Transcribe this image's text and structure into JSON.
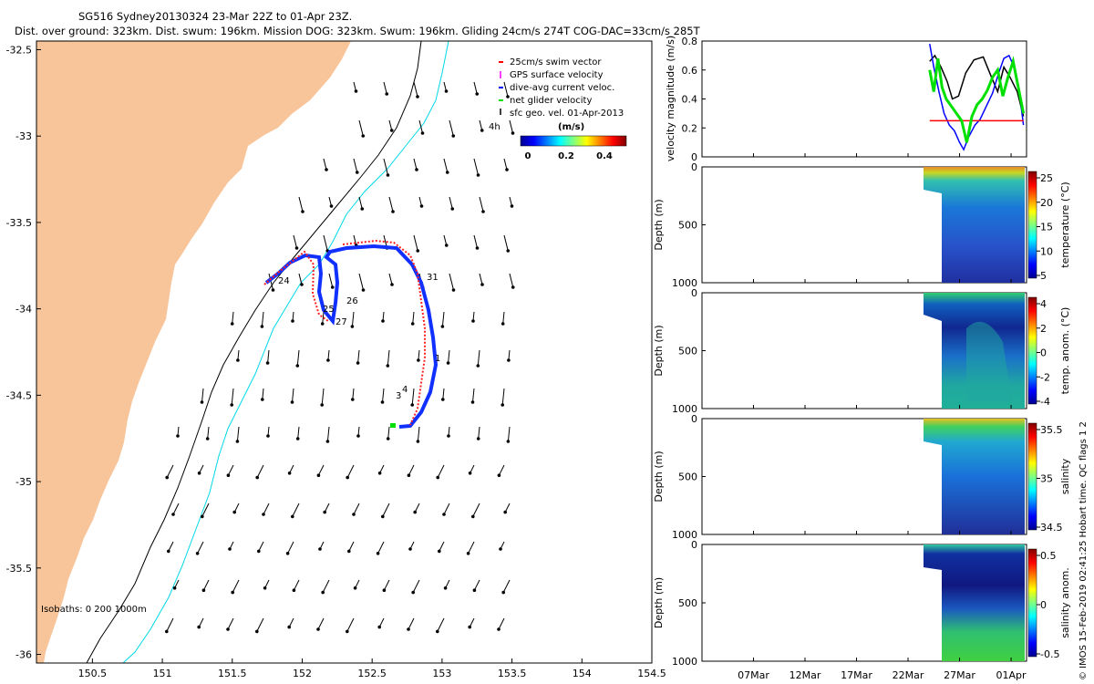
{
  "header": {
    "line1": "SG516 Sydney20130324 23-Mar 22Z to 01-Apr 23Z.",
    "line2": "Dist. over ground: 323km. Dist. swum: 196km. Mission DOG: 323km. Swum: 196km. Gliding 24cm/s 274T COG-DAC=33cm/s 285T"
  },
  "map": {
    "xlim": [
      150.1,
      154.5
    ],
    "ylim": [
      -36.05,
      -32.45
    ],
    "xticks": [
      "150.5",
      "151",
      "151.5",
      "152",
      "152.5",
      "153",
      "153.5",
      "154",
      "154.5"
    ],
    "yticks": [
      "-32.5",
      "-33",
      "-33.5",
      "-34",
      "-34.5",
      "-35",
      "-35.5",
      "-36"
    ],
    "land_color": "#f8c59a",
    "isobath_200_color": "#000000",
    "isobath_1000_color": "#00d8e8",
    "isobaths_label": "Isobaths: 0   200   1000m",
    "legend": [
      {
        "label": "25cm/s swim vector",
        "color": "#ff0000"
      },
      {
        "label": "GPS surface velocity",
        "color": "#ff00ff"
      },
      {
        "label": "dive-avg current veloc.",
        "color": "#0000ff"
      },
      {
        "label": "net glider velocity",
        "color": "#00e000"
      },
      {
        "label": "sfc geo. vel. 01-Apr-2013",
        "color": "#000000"
      }
    ],
    "scale_arrow_label": "4h",
    "colorbar_title": "(m/s)",
    "colorbar_ticks": [
      "0",
      "0.2",
      "0.4"
    ],
    "track_labels": [
      "24",
      "25",
      "26",
      "27",
      "31",
      "1",
      "3",
      "4"
    ]
  },
  "chart_data": [
    {
      "type": "line",
      "ylabel": "velocity magnitude (m/s)",
      "ylim": [
        0,
        0.8
      ],
      "yticks": [
        "0",
        "0.2",
        "0.4",
        "0.6",
        "0.8"
      ],
      "series": [
        {
          "color": "#000000",
          "values": [
            [
              24.1,
              0.66
            ],
            [
              24.6,
              0.7
            ],
            [
              25.2,
              0.62
            ],
            [
              25.8,
              0.52
            ],
            [
              26.3,
              0.4
            ],
            [
              26.9,
              0.42
            ],
            [
              27.6,
              0.58
            ],
            [
              28.4,
              0.67
            ],
            [
              29.3,
              0.69
            ],
            [
              30.1,
              0.55
            ],
            [
              30.7,
              0.45
            ],
            [
              31.3,
              0.62
            ],
            [
              31.9,
              0.55
            ],
            [
              32.6,
              0.45
            ],
            [
              33.2,
              0.28
            ]
          ]
        },
        {
          "color": "#0000ff",
          "values": [
            [
              24.1,
              0.78
            ],
            [
              24.5,
              0.62
            ],
            [
              25.0,
              0.45
            ],
            [
              25.5,
              0.3
            ],
            [
              26.0,
              0.22
            ],
            [
              26.5,
              0.18
            ],
            [
              27.0,
              0.1
            ],
            [
              27.4,
              0.05
            ],
            [
              27.9,
              0.14
            ],
            [
              28.5,
              0.22
            ],
            [
              29.0,
              0.26
            ],
            [
              29.6,
              0.35
            ],
            [
              30.2,
              0.44
            ],
            [
              30.8,
              0.58
            ],
            [
              31.3,
              0.68
            ],
            [
              31.8,
              0.7
            ],
            [
              32.3,
              0.62
            ],
            [
              32.8,
              0.45
            ],
            [
              33.2,
              0.22
            ]
          ]
        },
        {
          "color": "#ff0000",
          "values": [
            [
              24.1,
              0.25
            ],
            [
              33.2,
              0.25
            ]
          ]
        },
        {
          "color": "#00e000",
          "values": [
            [
              24.1,
              0.6
            ],
            [
              24.5,
              0.45
            ],
            [
              24.9,
              0.68
            ],
            [
              25.3,
              0.48
            ],
            [
              25.7,
              0.4
            ],
            [
              26.2,
              0.35
            ],
            [
              26.7,
              0.3
            ],
            [
              27.2,
              0.25
            ],
            [
              27.7,
              0.1
            ],
            [
              28.2,
              0.28
            ],
            [
              28.7,
              0.36
            ],
            [
              29.2,
              0.4
            ],
            [
              29.7,
              0.46
            ],
            [
              30.2,
              0.55
            ],
            [
              30.7,
              0.6
            ],
            [
              31.2,
              0.42
            ],
            [
              31.7,
              0.55
            ],
            [
              32.2,
              0.66
            ],
            [
              32.7,
              0.48
            ],
            [
              33.2,
              0.3
            ]
          ]
        }
      ]
    },
    {
      "type": "heatmap",
      "ylabel": "Depth (m)",
      "yticks": [
        "0",
        "500",
        "1000"
      ],
      "colorbar_label": "temperature (°C)",
      "colorbar_ticks": [
        "25",
        "20",
        "15",
        "10",
        "5"
      ]
    },
    {
      "type": "heatmap",
      "ylabel": "Depth (m)",
      "yticks": [
        "0",
        "500",
        "1000"
      ],
      "colorbar_label": "temp. anom. (°C)",
      "colorbar_ticks": [
        "4",
        "2",
        "0",
        "-2",
        "-4"
      ]
    },
    {
      "type": "heatmap",
      "ylabel": "Depth (m)",
      "yticks": [
        "0",
        "500",
        "1000"
      ],
      "colorbar_label": "salinity",
      "colorbar_ticks": [
        "35.5",
        "35",
        "34.5"
      ]
    },
    {
      "type": "heatmap",
      "ylabel": "Depth (m)",
      "yticks": [
        "0",
        "500",
        "1000"
      ],
      "colorbar_label": "salinity anom.",
      "colorbar_ticks": [
        "0.5",
        "0",
        "-0.5"
      ]
    }
  ],
  "time_axis": {
    "xticks": [
      "07Mar",
      "12Mar",
      "17Mar",
      "22Mar",
      "27Mar",
      "01Apr"
    ]
  },
  "footer": "© IMOS 15-Feb-2019 02:41:25 Hobart time. QC flags 1  2"
}
